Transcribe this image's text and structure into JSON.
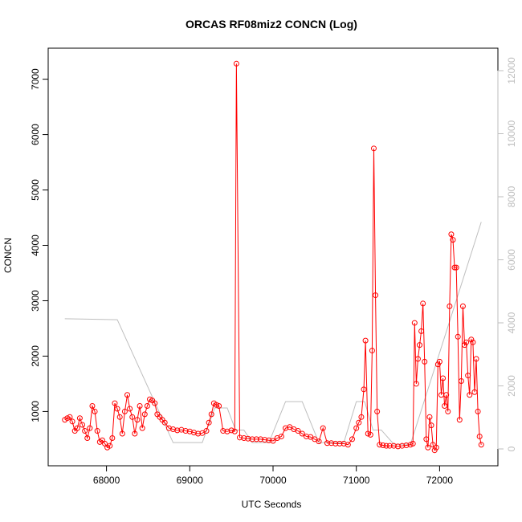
{
  "chart_data": {
    "type": "line",
    "title": "ORCAS RF08miz2 CONCN (Log)",
    "xlabel": "UTC Seconds",
    "ylabel": "CONCN",
    "xlim": [
      67300,
      72700
    ],
    "xticks": [
      68000,
      69000,
      70000,
      71000,
      72000
    ],
    "ylim": [
      20,
      7560
    ],
    "yticks": [
      1000,
      2000,
      3000,
      4000,
      5000,
      6000,
      7000
    ],
    "y2lim": [
      -535,
      12713
    ],
    "y2ticks": [
      0,
      2000,
      4000,
      6000,
      8000,
      10000,
      12000
    ],
    "series": [
      {
        "color": "#ff0000",
        "markers": true,
        "x": [
          67500,
          67530,
          67560,
          67590,
          67620,
          67650,
          67680,
          67710,
          67740,
          67770,
          67800,
          67830,
          67860,
          67890,
          67920,
          67950,
          67980,
          68010,
          68040,
          68070,
          68100,
          68130,
          68160,
          68190,
          68220,
          68250,
          68280,
          68310,
          68340,
          68370,
          68400,
          68430,
          68460,
          68490,
          68520,
          68550,
          68580,
          68610,
          68640,
          68670,
          68700,
          68750,
          68800,
          68850,
          68900,
          68950,
          69000,
          69050,
          69100,
          69150,
          69200,
          69230,
          69260,
          69290,
          69320,
          69350,
          69400,
          69450,
          69500,
          69540,
          69560,
          69600,
          69650,
          69700,
          69750,
          69800,
          69850,
          69900,
          69950,
          70000,
          70050,
          70100,
          70150,
          70200,
          70250,
          70300,
          70350,
          70400,
          70450,
          70500,
          70550,
          70600,
          70650,
          70700,
          70750,
          70800,
          70850,
          70900,
          70950,
          71000,
          71030,
          71060,
          71090,
          71110,
          71140,
          71170,
          71190,
          71210,
          71230,
          71250,
          71280,
          71320,
          71360,
          71400,
          71450,
          71500,
          71550,
          71600,
          71650,
          71680,
          71700,
          71720,
          71740,
          71760,
          71780,
          71800,
          71820,
          71840,
          71860,
          71880,
          71900,
          71920,
          71940,
          71960,
          71980,
          72000,
          72020,
          72040,
          72060,
          72080,
          72100,
          72120,
          72140,
          72160,
          72180,
          72200,
          72220,
          72240,
          72260,
          72280,
          72300,
          72320,
          72340,
          72360,
          72380,
          72400,
          72420,
          72440,
          72460,
          72480,
          72500
        ],
        "values": [
          850,
          880,
          900,
          820,
          650,
          700,
          880,
          760,
          650,
          520,
          700,
          1100,
          1000,
          650,
          450,
          480,
          420,
          350,
          380,
          520,
          1150,
          1050,
          900,
          600,
          1000,
          1300,
          1050,
          900,
          600,
          850,
          1100,
          700,
          950,
          1100,
          1220,
          1200,
          1150,
          950,
          900,
          850,
          800,
          700,
          680,
          660,
          670,
          650,
          640,
          620,
          600,
          610,
          650,
          800,
          950,
          1150,
          1120,
          1100,
          650,
          640,
          660,
          640,
          7280,
          530,
          520,
          510,
          500,
          500,
          500,
          490,
          480,
          470,
          520,
          550,
          700,
          720,
          680,
          650,
          600,
          550,
          540,
          500,
          460,
          700,
          430,
          430,
          420,
          420,
          420,
          400,
          500,
          700,
          800,
          900,
          1400,
          2280,
          600,
          580,
          2100,
          5750,
          3100,
          1000,
          400,
          390,
          380,
          380,
          380,
          370,
          380,
          390,
          400,
          420,
          2600,
          1500,
          1950,
          2200,
          2450,
          2950,
          1900,
          500,
          350,
          900,
          750,
          400,
          300,
          350,
          1850,
          1900,
          1300,
          1600,
          1100,
          1300,
          1000,
          2900,
          4200,
          4100,
          3600,
          3600,
          2350,
          850,
          1550,
          2900,
          2200,
          2250,
          1650,
          1300,
          2300,
          2250,
          1350,
          1950,
          1000,
          550,
          400
        ]
      },
      {
        "color": "#bebebe",
        "axis": "y2",
        "x": [
          67500,
          68130,
          68800,
          69150,
          69300,
          69450,
          69550,
          69650,
          69750,
          69950,
          70150,
          70350,
          70550,
          70850,
          71000,
          71100,
          71200,
          71300,
          71450,
          71650,
          72500
        ],
        "values": [
          4130,
          4100,
          200,
          200,
          1300,
          1300,
          600,
          600,
          200,
          200,
          1500,
          1500,
          200,
          200,
          1500,
          1500,
          600,
          600,
          150,
          150,
          7200
        ]
      }
    ]
  }
}
